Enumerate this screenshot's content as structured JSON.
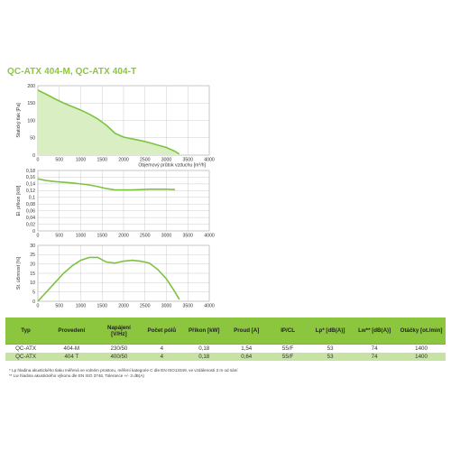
{
  "title": "QC-ATX 404-M, QC-ATX 404-T",
  "colors": {
    "accent": "#8cc63f",
    "fill": "#d9eec2",
    "line": "#7ec242",
    "grid": "#cccccc"
  },
  "chart_data": [
    {
      "type": "area",
      "ylabel": "Statický tlak [Pa]",
      "xlabel": "Objemový průtok vzduchu [m³/h]",
      "xlim": [
        0,
        4000
      ],
      "ylim": [
        0,
        200
      ],
      "xticks": [
        0,
        500,
        1000,
        1500,
        2000,
        2500,
        3000,
        3500,
        4000
      ],
      "yticks": [
        0,
        50,
        100,
        150,
        200
      ],
      "grid": true,
      "series": [
        {
          "x": [
            0,
            200,
            400,
            600,
            800,
            1000,
            1200,
            1400,
            1600,
            1800,
            2000,
            2200,
            2400,
            2600,
            2800,
            3000,
            3200,
            3300
          ],
          "y": [
            187,
            175,
            162,
            150,
            140,
            130,
            118,
            104,
            86,
            63,
            52,
            47,
            42,
            36,
            29,
            22,
            11,
            3
          ]
        }
      ]
    },
    {
      "type": "line",
      "ylabel": "El. příkon [kW]",
      "xlim": [
        0,
        4000
      ],
      "ylim": [
        0,
        0.18
      ],
      "xticks": [
        0,
        500,
        1000,
        1500,
        2000,
        2500,
        3000,
        3500,
        4000
      ],
      "yticks": [
        0,
        0.02,
        0.04,
        0.06,
        0.08,
        0.1,
        0.12,
        0.14,
        0.16,
        0.18
      ],
      "grid": true,
      "series": [
        {
          "x": [
            0,
            200,
            400,
            600,
            800,
            1000,
            1200,
            1400,
            1600,
            1800,
            2000,
            2200,
            2400,
            2600,
            2800,
            3000,
            3200
          ],
          "y": [
            0.155,
            0.15,
            0.147,
            0.145,
            0.143,
            0.14,
            0.137,
            0.132,
            0.126,
            0.122,
            0.122,
            0.122,
            0.123,
            0.124,
            0.124,
            0.124,
            0.123
          ]
        }
      ]
    },
    {
      "type": "line",
      "ylabel": "St. účinnost [%]",
      "xlim": [
        0,
        4000
      ],
      "ylim": [
        0,
        30
      ],
      "xticks": [
        0,
        500,
        1000,
        1500,
        2000,
        2500,
        3000,
        3500,
        4000
      ],
      "yticks": [
        0,
        5,
        10,
        15,
        20,
        25,
        30
      ],
      "grid": true,
      "series": [
        {
          "x": [
            0,
            200,
            400,
            600,
            800,
            1000,
            1200,
            1400,
            1600,
            1800,
            2000,
            2200,
            2400,
            2600,
            2800,
            3000,
            3200,
            3300
          ],
          "y": [
            0,
            5,
            10,
            15,
            19,
            22,
            23.5,
            23.5,
            21,
            20.5,
            21.5,
            22,
            21.5,
            20.5,
            17,
            12,
            5,
            1
          ]
        }
      ]
    }
  ],
  "table": {
    "headers": [
      "Typ",
      "Provedení",
      "Napájení [V/Hz]",
      "Počet pólů",
      "Příkon [kW]",
      "Proud [A]",
      "IP/CL",
      "Lp* [dB(A)]",
      "Lw** [dB(A)]",
      "Otáčky [ot./min]"
    ],
    "rows": [
      [
        "QC-ATX",
        "404-M",
        "230/50",
        "4",
        "0,18",
        "1,54",
        "55/F",
        "53",
        "74",
        "1400"
      ],
      [
        "QC-ATX",
        "404 T",
        "400/50",
        "4",
        "0,18",
        "0,64",
        "55/F",
        "53",
        "74",
        "1400"
      ]
    ]
  },
  "notes": [
    "* Lp hladina akustického tlaku měřená ve volném prostoru, měření kategorie C dle EN ISO13349, ve vzdálenosti 3 m od sání",
    "** Lw hladina akustického výkonu dle EN ISO 3746, Tolerance +/- 3 dB(A)"
  ]
}
